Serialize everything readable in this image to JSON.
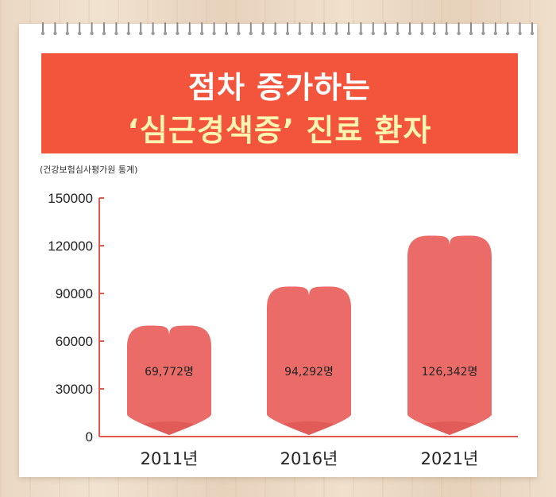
{
  "header": {
    "title_line1": "점차 증가하는",
    "title_line2": "‘심근경색증’ 진료 환자",
    "source": "(건강보험심사평가원 통계)"
  },
  "colors": {
    "banner": "#f3553c",
    "title_highlight": "#fff5b0",
    "heart": "#ea6b68",
    "heart_tip": "#d9504c",
    "axis": "#e2574c"
  },
  "chart_data": {
    "type": "bar",
    "categories": [
      "2011년",
      "2016년",
      "2021년"
    ],
    "values": [
      69772,
      94292,
      126342
    ],
    "data_labels": [
      "69,772명",
      "94,292명",
      "126,342명"
    ],
    "yticks": [
      "0",
      "30000",
      "60000",
      "90000",
      "120000",
      "150000"
    ],
    "ylim": [
      0,
      150000
    ],
    "title": "",
    "xlabel": "",
    "ylabel": "",
    "grid": false
  }
}
